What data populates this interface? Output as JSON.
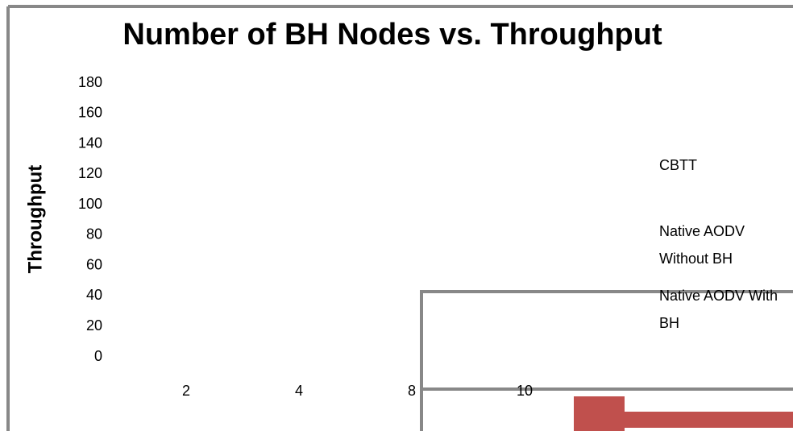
{
  "chart_data": {
    "type": "line",
    "title": "Number of BH Nodes vs. Throughput",
    "y_label": "Throughput",
    "categories": [
      "2",
      "4",
      "8",
      "10"
    ],
    "series": [
      {
        "name": "CBTT",
        "color": "#4f81bd",
        "values": [
          null,
          null,
          null,
          null
        ]
      },
      {
        "name": "Native AODV Without BH",
        "color": "#c0504d",
        "values": [
          null,
          null,
          null,
          null
        ]
      },
      {
        "name": "Native AODV With BH",
        "color": "#9bbb59",
        "values": [
          null,
          null,
          null,
          null
        ]
      }
    ],
    "ylim": [
      0,
      180
    ],
    "yticks": [
      0,
      20,
      40,
      60,
      80,
      100,
      120,
      140,
      160,
      180
    ],
    "grid": false
  }
}
